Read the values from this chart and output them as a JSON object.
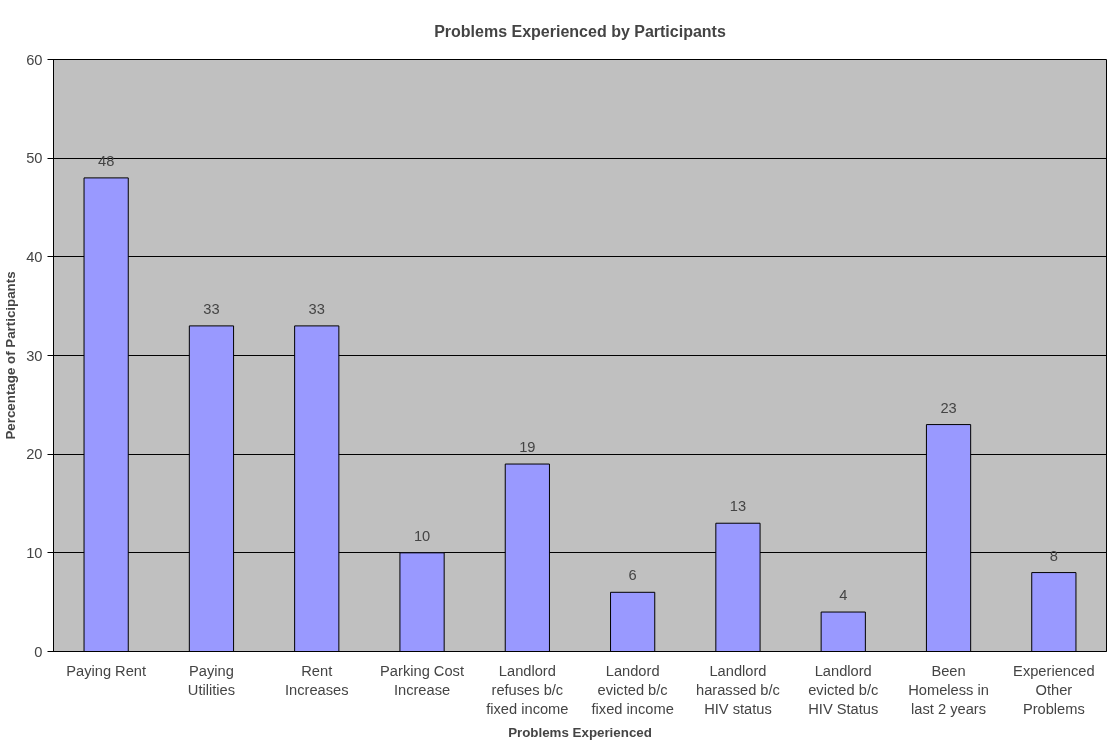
{
  "chart_data": {
    "type": "bar",
    "title": "Problems Experienced by Participants",
    "xlabel": "Problems Experienced",
    "ylabel": "Percentage of Participants",
    "categories": [
      "Paying Rent",
      "Paying Utilities",
      "Rent Increases",
      "Parking Cost Increase",
      "Landlord refuses b/c fixed income",
      "Landord evicted b/c fixed income",
      "Landlord harassed b/c HIV status",
      "Landlord evicted b/c HIV Status",
      "Been Homeless in last 2 years",
      "Experienced Other Problems"
    ],
    "values": [
      48,
      33,
      33,
      10,
      19,
      6,
      13,
      4,
      23,
      8
    ],
    "color": "#9999ff",
    "ylim": [
      0,
      60
    ],
    "yticks": [
      0,
      10,
      20,
      30,
      40,
      50,
      60
    ],
    "grid": "y",
    "data_labels": true
  }
}
